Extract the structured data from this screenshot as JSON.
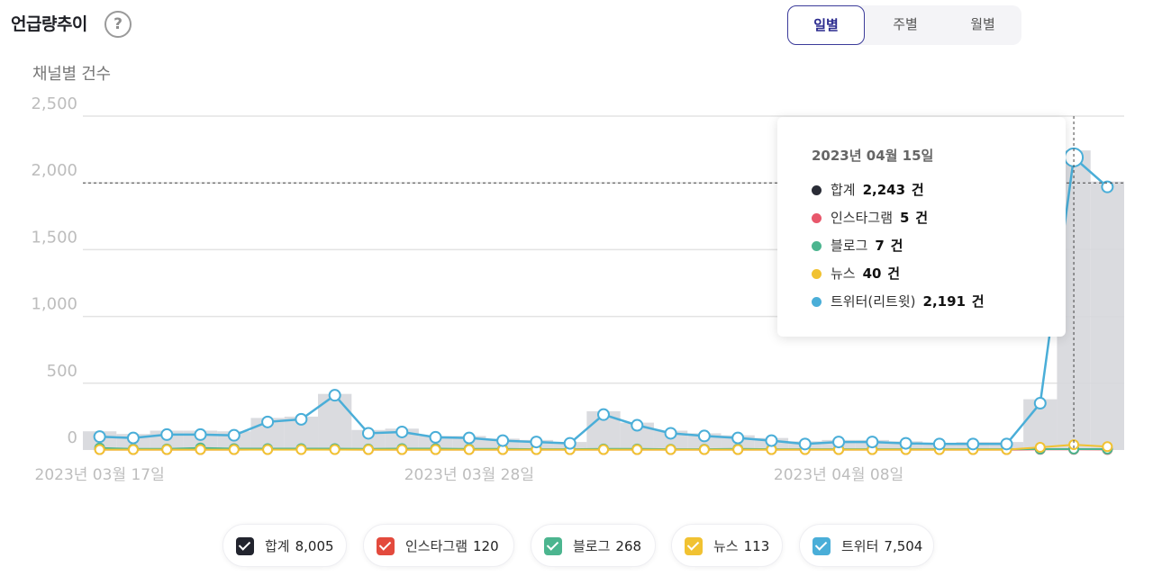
{
  "header": {
    "title": "언급량추이",
    "help_icon": "?",
    "period_tabs": [
      {
        "label": "일별",
        "active": true
      },
      {
        "label": "주별",
        "active": false
      },
      {
        "label": "월별",
        "active": false
      }
    ]
  },
  "chart_data": {
    "type": "line",
    "ylabel": "채널별 건수",
    "ylim": [
      0,
      2500
    ],
    "yticks": [
      "2,500",
      "2,000",
      "1,500",
      "1,000",
      "500",
      "0"
    ],
    "ytick_values": [
      2500,
      2000,
      1500,
      1000,
      500,
      0
    ],
    "xtick_labels": [
      {
        "label": "2023년 03월 17일",
        "index": 0
      },
      {
        "label": "2023년 03월 28일",
        "index": 11
      },
      {
        "label": "2023년 04월 08일",
        "index": 22
      }
    ],
    "x": [
      "2023-03-17",
      "2023-03-18",
      "2023-03-19",
      "2023-03-20",
      "2023-03-21",
      "2023-03-22",
      "2023-03-23",
      "2023-03-24",
      "2023-03-25",
      "2023-03-26",
      "2023-03-27",
      "2023-03-28",
      "2023-03-29",
      "2023-03-30",
      "2023-03-31",
      "2023-04-01",
      "2023-04-02",
      "2023-04-03",
      "2023-04-04",
      "2023-04-05",
      "2023-04-06",
      "2023-04-07",
      "2023-04-08",
      "2023-04-09",
      "2023-04-10",
      "2023-04-11",
      "2023-04-12",
      "2023-04-13",
      "2023-04-14",
      "2023-04-15",
      "2023-04-16"
    ],
    "series": [
      {
        "name": "합계",
        "color": "#22242e",
        "display": "bar",
        "values": [
          140,
          120,
          145,
          145,
          140,
          240,
          250,
          420,
          150,
          160,
          105,
          105,
          85,
          75,
          60,
          290,
          205,
          145,
          125,
          110,
          90,
          65,
          75,
          75,
          65,
          55,
          60,
          60,
          380,
          2243,
          2010
        ]
      },
      {
        "name": "인스타그램",
        "color": "#e34a52",
        "values": [
          3,
          3,
          3,
          3,
          3,
          4,
          4,
          4,
          3,
          3,
          3,
          3,
          3,
          3,
          3,
          3,
          3,
          3,
          3,
          3,
          3,
          3,
          3,
          3,
          3,
          3,
          3,
          3,
          5,
          5,
          4
        ]
      },
      {
        "name": "블로그",
        "color": "#4cb58f",
        "values": [
          15,
          8,
          8,
          15,
          10,
          10,
          10,
          10,
          8,
          10,
          10,
          8,
          8,
          6,
          6,
          8,
          8,
          6,
          6,
          8,
          6,
          6,
          6,
          6,
          6,
          6,
          6,
          6,
          7,
          7,
          7
        ]
      },
      {
        "name": "뉴스",
        "color": "#f1c232",
        "values": [
          3,
          3,
          3,
          3,
          3,
          3,
          3,
          3,
          3,
          3,
          3,
          3,
          3,
          3,
          3,
          3,
          3,
          3,
          3,
          3,
          3,
          3,
          3,
          3,
          3,
          3,
          3,
          3,
          20,
          40,
          25
        ]
      },
      {
        "name": "트위터",
        "color": "#4aaed8",
        "values": [
          100,
          90,
          115,
          115,
          110,
          210,
          230,
          410,
          125,
          135,
          95,
          90,
          70,
          60,
          50,
          265,
          185,
          125,
          105,
          90,
          70,
          45,
          60,
          60,
          50,
          45,
          45,
          45,
          350,
          2191,
          1970
        ]
      }
    ]
  },
  "tooltip": {
    "date": "2023년 04월 15일",
    "rows": [
      {
        "name": "합계",
        "value": "2,243",
        "unit": "건",
        "color": "#2a2c36"
      },
      {
        "name": "인스타그램",
        "value": "5",
        "unit": "건",
        "color": "#e8576b"
      },
      {
        "name": "블로그",
        "value": "7",
        "unit": "건",
        "color": "#4cb58f"
      },
      {
        "name": "뉴스",
        "value": "40",
        "unit": "건",
        "color": "#f1c232"
      },
      {
        "name": "트위터(리트윗)",
        "value": "2,191",
        "unit": "건",
        "color": "#4aaed8"
      }
    ]
  },
  "legend": [
    {
      "name": "합계",
      "total": "8,005",
      "color": "#22242e"
    },
    {
      "name": "인스타그램",
      "total": "120",
      "color": "#e34a3d"
    },
    {
      "name": "블로그",
      "total": "268",
      "color": "#4cb58f"
    },
    {
      "name": "뉴스",
      "total": "113",
      "color": "#f1c232"
    },
    {
      "name": "트위터",
      "total": "7,504",
      "color": "#4aaed8"
    }
  ]
}
